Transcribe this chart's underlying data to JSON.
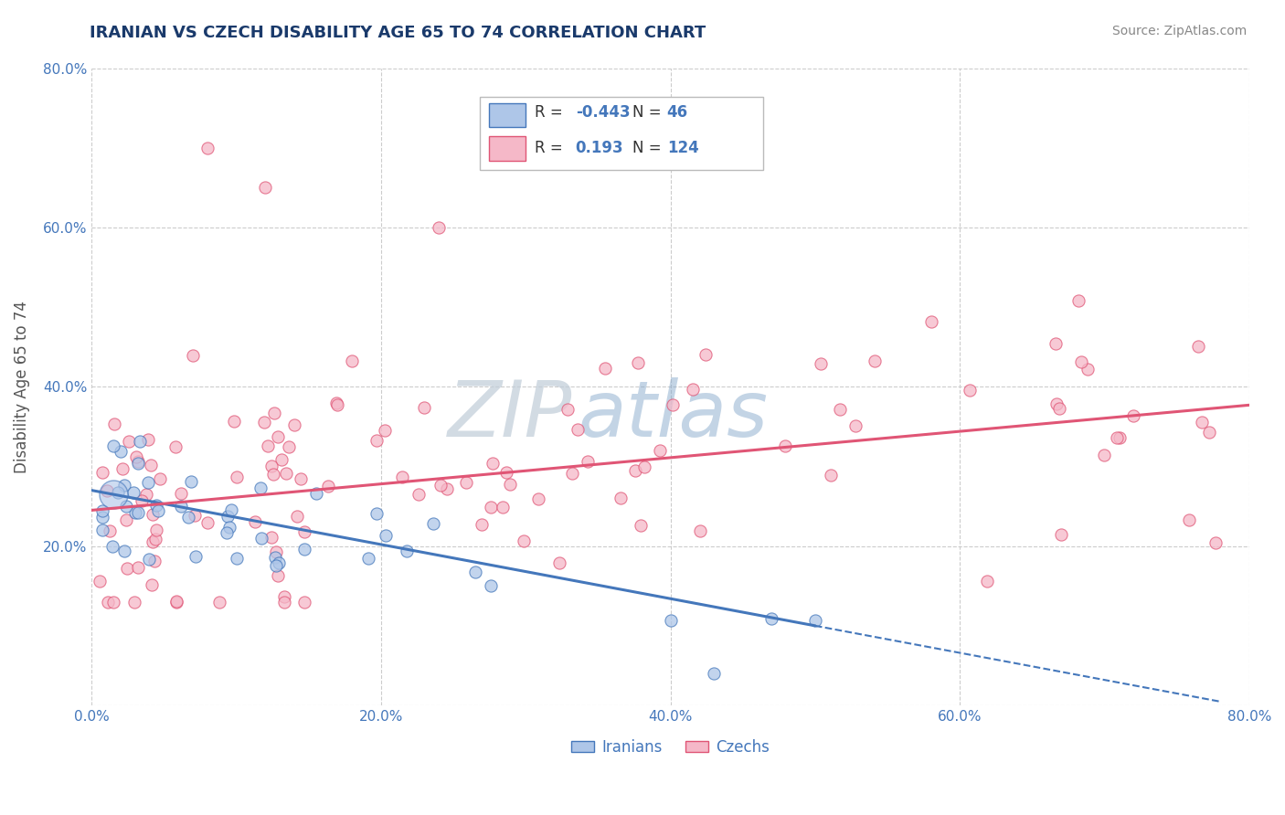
{
  "title": "IRANIAN VS CZECH DISABILITY AGE 65 TO 74 CORRELATION CHART",
  "source_text": "Source: ZipAtlas.com",
  "ylabel": "Disability Age 65 to 74",
  "xlim": [
    0.0,
    0.8
  ],
  "ylim": [
    0.0,
    0.8
  ],
  "xtick_vals": [
    0.0,
    0.2,
    0.4,
    0.6,
    0.8
  ],
  "xtick_labels": [
    "0.0%",
    "20.0%",
    "40.0%",
    "60.0%",
    "80.0%"
  ],
  "ytick_vals": [
    0.0,
    0.2,
    0.4,
    0.6,
    0.8
  ],
  "ytick_labels": [
    "",
    "20.0%",
    "40.0%",
    "60.0%",
    "80.0%"
  ],
  "background_color": "#ffffff",
  "grid_color": "#cccccc",
  "iranian_color": "#aec6e8",
  "czech_color": "#f5b8c8",
  "iranian_line_color": "#4477bb",
  "czech_line_color": "#e05575",
  "iranian_R": -0.443,
  "iranian_N": 46,
  "czech_R": 0.193,
  "czech_N": 124,
  "legend_labels": [
    "Iranians",
    "Czechs"
  ],
  "watermark_zip": "ZIP",
  "watermark_atlas": "atlas",
  "title_color": "#1a3a6b",
  "source_color": "#888888",
  "tick_color": "#4477bb",
  "ylabel_color": "#555555"
}
